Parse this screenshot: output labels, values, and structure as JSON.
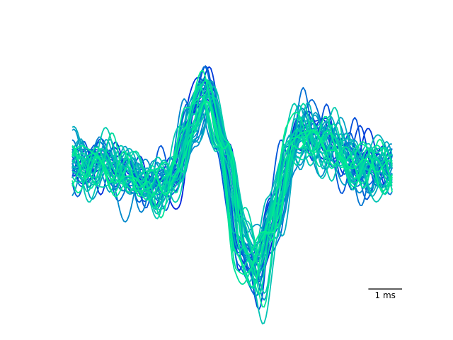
{
  "chart_data": {
    "type": "line",
    "title": "",
    "xlabel": "",
    "ylabel": "",
    "x_units": "ms",
    "x_range_ms": [
      0,
      9.5
    ],
    "y_range": [
      -1.05,
      1.0
    ],
    "axes_visible": false,
    "grid": false,
    "legend": "none",
    "colormap": [
      "#0022dd",
      "#0060d8",
      "#00a0c4",
      "#00c8b0",
      "#00f08e"
    ],
    "n_traces": 40,
    "template": {
      "t_ms": [
        0.0,
        0.5,
        1.0,
        1.5,
        2.0,
        2.5,
        3.0,
        3.5,
        4.0,
        4.5,
        5.0,
        5.5,
        6.0,
        6.5,
        7.0,
        7.5,
        8.0,
        8.5,
        9.0,
        9.5
      ],
      "amplitude": [
        0.0,
        0.05,
        0.02,
        -0.05,
        -0.1,
        -0.15,
        -0.08,
        0.35,
        0.6,
        0.15,
        -0.6,
        -0.78,
        -0.35,
        0.15,
        0.3,
        0.2,
        0.08,
        0.02,
        0.0,
        -0.02
      ]
    },
    "annotations": [
      {
        "role": "scalebar",
        "label": "1 ms",
        "length_ms": 1
      }
    ]
  }
}
